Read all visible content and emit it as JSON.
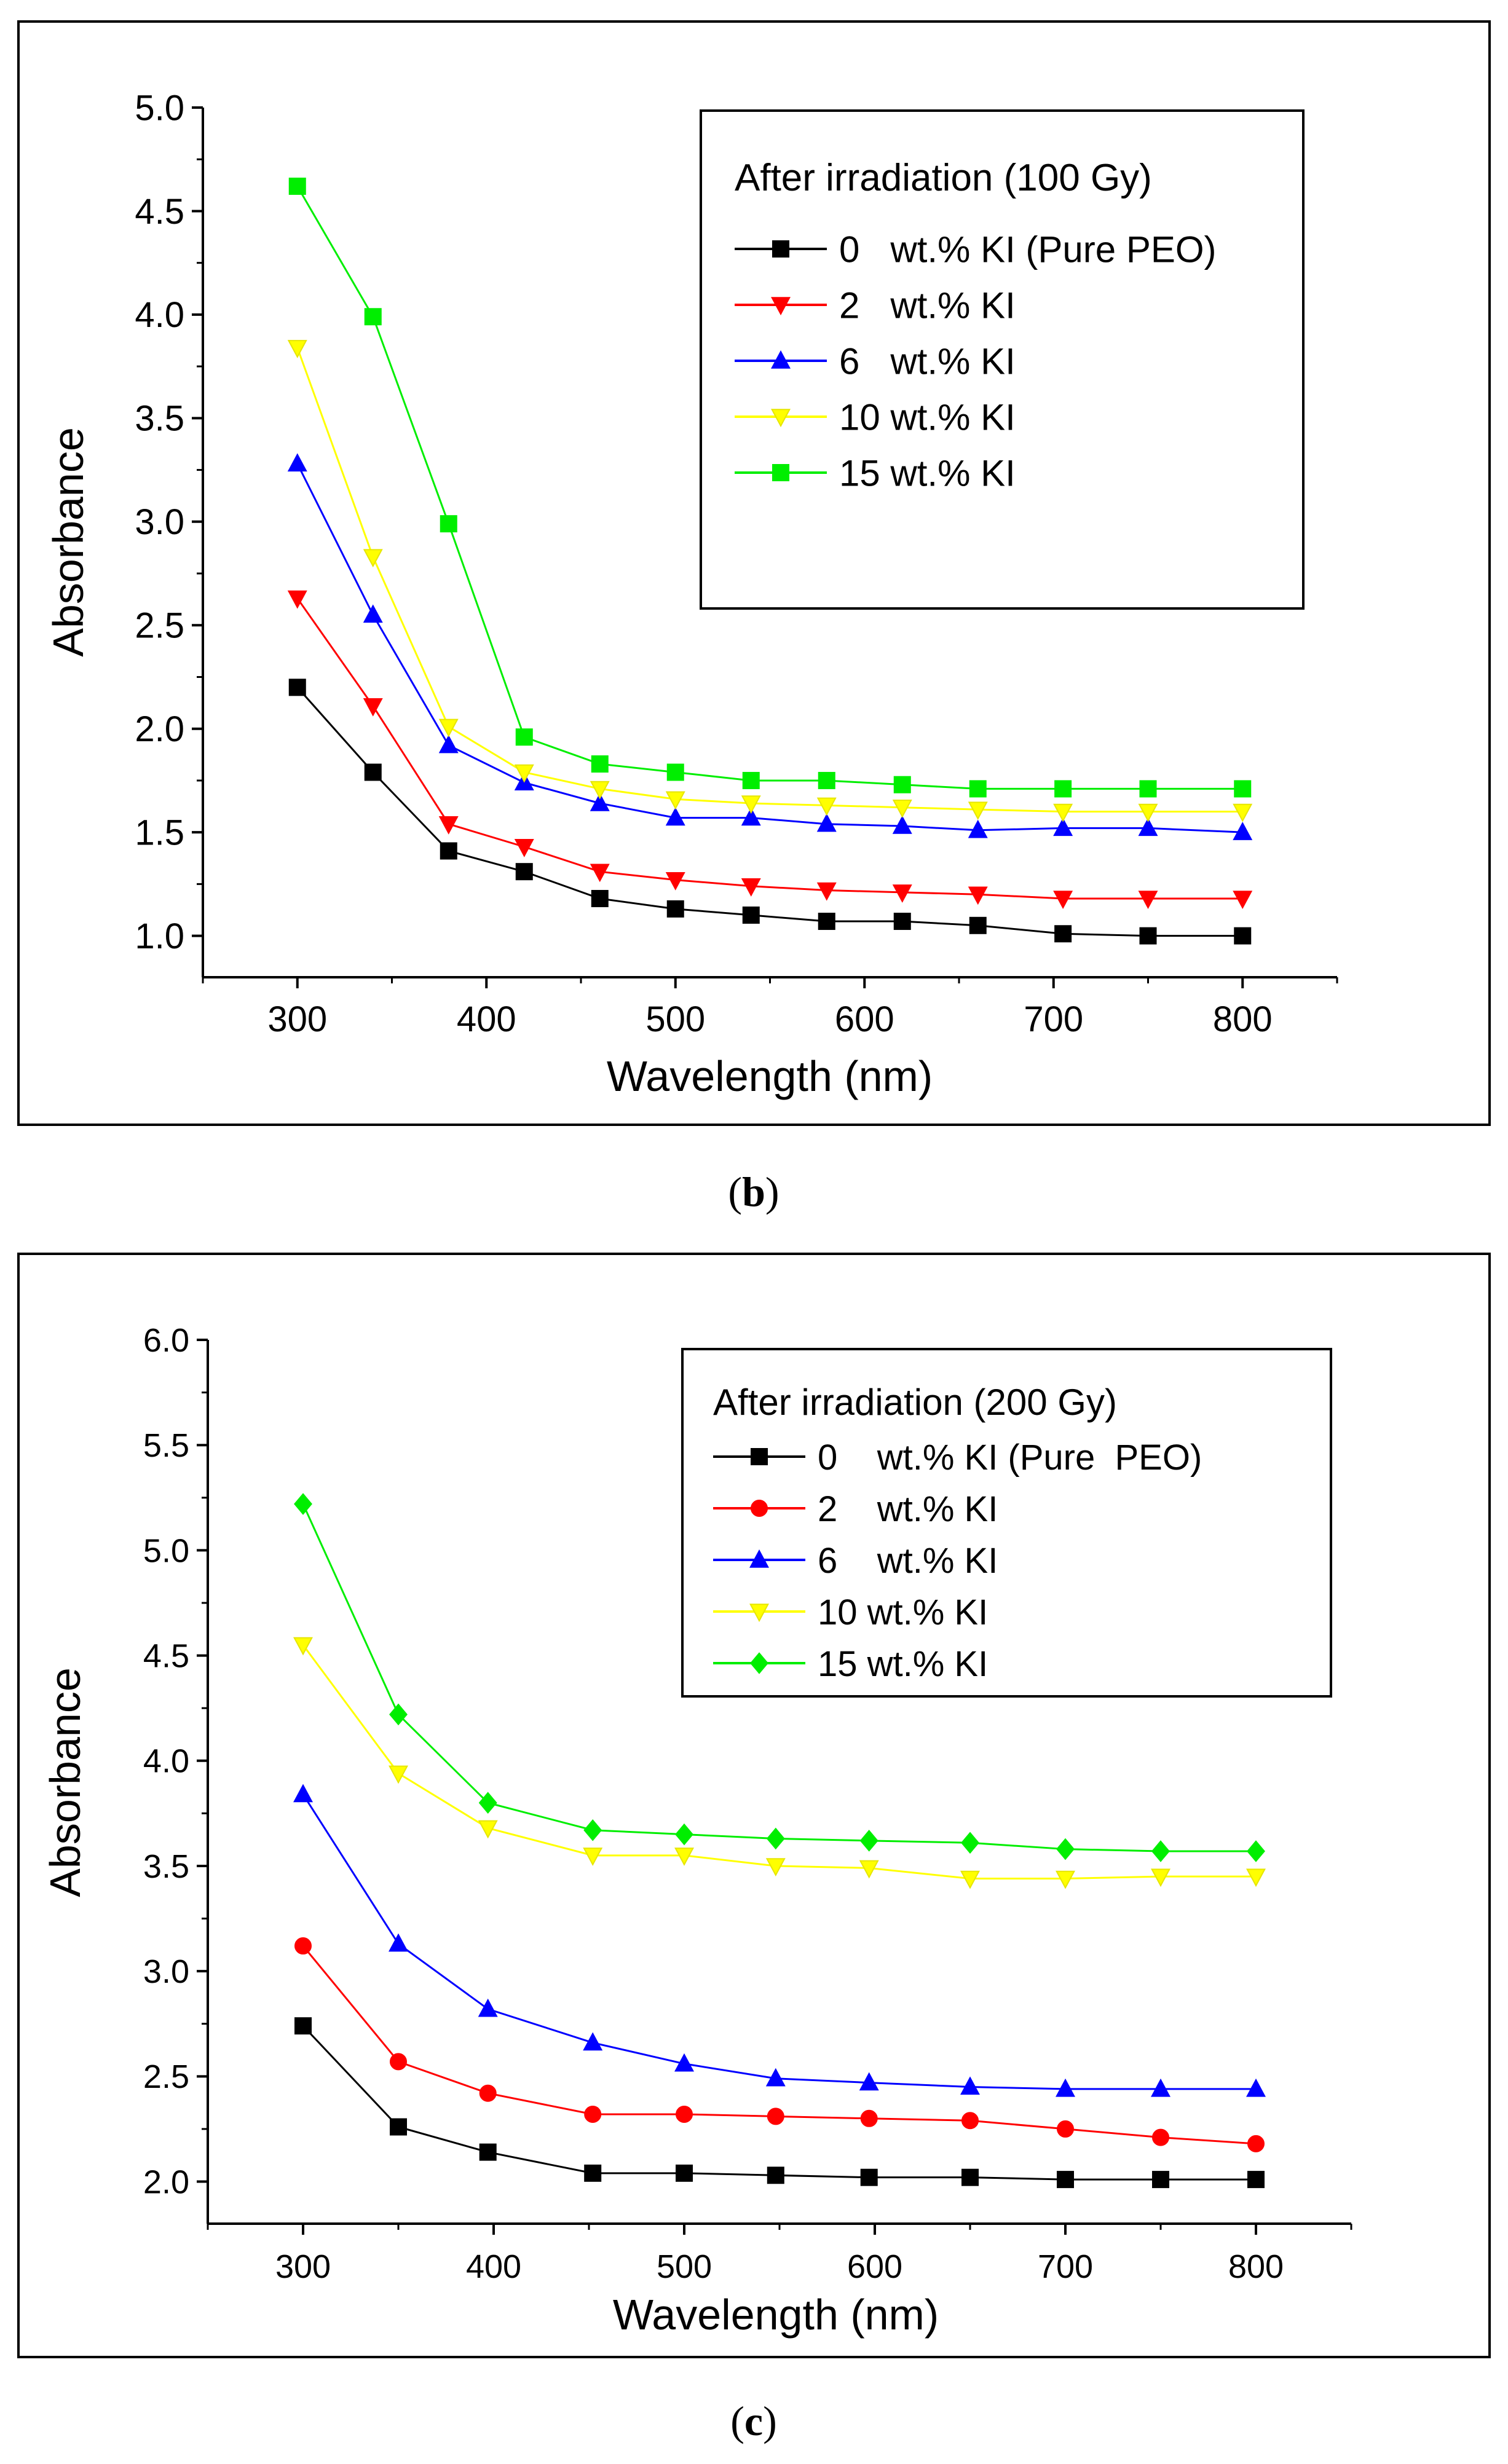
{
  "chart_data": [
    {
      "type": "line",
      "caption_label": "b",
      "xlabel": "Wavelength (nm)",
      "ylabel": "Absorbance",
      "xlim": [
        250,
        850
      ],
      "ylim": [
        0.8,
        5.0
      ],
      "xticks": [
        300,
        400,
        500,
        600,
        700,
        800
      ],
      "yticks": [
        1.0,
        1.5,
        2.0,
        2.5,
        3.0,
        3.5,
        4.0,
        4.5,
        5.0
      ],
      "ytick_labels": [
        "1.0",
        "1.5",
        "2.0",
        "2.5",
        "3.0",
        "3.5",
        "4.0",
        "4.5",
        "5.0"
      ],
      "legend": {
        "title": "After  irradiation (100 Gy)",
        "placement": "top-right"
      },
      "x": [
        300,
        340,
        380,
        420,
        460,
        500,
        540,
        580,
        620,
        660,
        705,
        750,
        800
      ],
      "series": [
        {
          "name": "0   wt.% KI (Pure PEO)",
          "color": "#000000",
          "marker": "square",
          "values": [
            2.2,
            1.79,
            1.41,
            1.31,
            1.18,
            1.13,
            1.1,
            1.07,
            1.07,
            1.05,
            1.01,
            1.0,
            1.0
          ]
        },
        {
          "name": "2   wt.% KI",
          "color": "#ff0000",
          "marker": "triangle-down",
          "values": [
            2.63,
            2.11,
            1.54,
            1.43,
            1.31,
            1.27,
            1.24,
            1.22,
            1.21,
            1.2,
            1.18,
            1.18,
            1.18
          ]
        },
        {
          "name": "6   wt.% KI",
          "color": "#0000ff",
          "marker": "triangle-up",
          "values": [
            3.28,
            2.55,
            1.92,
            1.74,
            1.64,
            1.57,
            1.57,
            1.54,
            1.53,
            1.51,
            1.52,
            1.52,
            1.5
          ]
        },
        {
          "name": "10 wt.% KI",
          "color": "#ffff00",
          "marker": "triangle-down",
          "values": [
            3.84,
            2.83,
            2.01,
            1.79,
            1.71,
            1.66,
            1.64,
            1.63,
            1.62,
            1.61,
            1.6,
            1.6,
            1.6
          ]
        },
        {
          "name": "15 wt.% KI",
          "color": "#00ee00",
          "marker": "square",
          "values": [
            4.62,
            3.99,
            2.99,
            1.96,
            1.83,
            1.79,
            1.75,
            1.75,
            1.73,
            1.71,
            1.71,
            1.71,
            1.71
          ]
        }
      ]
    },
    {
      "type": "line",
      "caption_label": "c",
      "xlabel": "Wavelength (nm)",
      "ylabel": "Absorbance",
      "xlim": [
        250,
        850
      ],
      "ylim": [
        1.8,
        6.0
      ],
      "xticks": [
        300,
        400,
        500,
        600,
        700,
        800
      ],
      "yticks": [
        2.0,
        2.5,
        3.0,
        3.5,
        4.0,
        4.5,
        5.0,
        5.5,
        6.0
      ],
      "ytick_labels": [
        "2.0",
        "2.5",
        "3.0",
        "3.5",
        "4.0",
        "4.5",
        "5.0",
        "5.5",
        "6.0"
      ],
      "legend": {
        "title": "After  irradiation (200 Gy)",
        "placement": "top-right"
      },
      "x": [
        300,
        350,
        397,
        452,
        500,
        548,
        597,
        650,
        700,
        750,
        800
      ],
      "series": [
        {
          "name": "0    wt.% KI (Pure  PEO)",
          "color": "#000000",
          "marker": "square",
          "values": [
            2.74,
            2.26,
            2.14,
            2.04,
            2.04,
            2.03,
            2.02,
            2.02,
            2.01,
            2.01,
            2.01
          ]
        },
        {
          "name": "2    wt.% KI",
          "color": "#ff0000",
          "marker": "circle",
          "values": [
            3.12,
            2.57,
            2.42,
            2.32,
            2.32,
            2.31,
            2.3,
            2.29,
            2.25,
            2.21,
            2.18
          ]
        },
        {
          "name": "6    wt.% KI",
          "color": "#0000ff",
          "marker": "triangle-up",
          "values": [
            3.84,
            3.13,
            2.82,
            2.66,
            2.56,
            2.49,
            2.47,
            2.45,
            2.44,
            2.44,
            2.44
          ]
        },
        {
          "name": "10 wt.% KI",
          "color": "#ffff00",
          "marker": "triangle-down",
          "values": [
            4.55,
            3.94,
            3.68,
            3.55,
            3.55,
            3.5,
            3.49,
            3.44,
            3.44,
            3.45,
            3.45
          ]
        },
        {
          "name": "15 wt.% KI",
          "color": "#00ee00",
          "marker": "diamond",
          "values": [
            5.22,
            4.22,
            3.8,
            3.67,
            3.65,
            3.63,
            3.62,
            3.61,
            3.58,
            3.57,
            3.57
          ]
        }
      ]
    }
  ]
}
